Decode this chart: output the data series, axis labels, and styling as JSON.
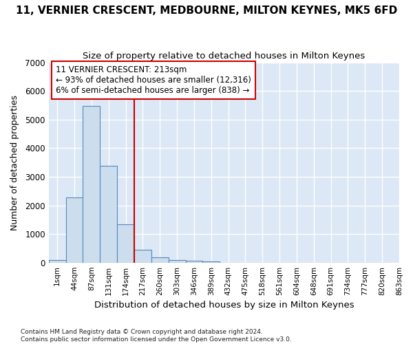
{
  "title": "11, VERNIER CRESCENT, MEDBOURNE, MILTON KEYNES, MK5 6FD",
  "subtitle": "Size of property relative to detached houses in Milton Keynes",
  "xlabel": "Distribution of detached houses by size in Milton Keynes",
  "ylabel": "Number of detached properties",
  "footer_line1": "Contains HM Land Registry data © Crown copyright and database right 2024.",
  "footer_line2": "Contains public sector information licensed under the Open Government Licence v3.0.",
  "bin_labels": [
    "1sqm",
    "44sqm",
    "87sqm",
    "131sqm",
    "174sqm",
    "217sqm",
    "260sqm",
    "303sqm",
    "346sqm",
    "389sqm",
    "432sqm",
    "475sqm",
    "518sqm",
    "561sqm",
    "604sqm",
    "648sqm",
    "691sqm",
    "734sqm",
    "777sqm",
    "820sqm",
    "863sqm"
  ],
  "bar_values": [
    80,
    2280,
    5480,
    3390,
    1350,
    450,
    175,
    80,
    65,
    50,
    0,
    0,
    0,
    0,
    0,
    0,
    0,
    0,
    0,
    0
  ],
  "bar_color": "#ccdded",
  "bar_edgecolor": "#5588bb",
  "vline_bin": 5,
  "vline_color": "#cc0000",
  "annotation_line1": "11 VERNIER CRESCENT: 213sqm",
  "annotation_line2": "← 93% of detached houses are smaller (12,316)",
  "annotation_line3": "6% of semi-detached houses are larger (838) →",
  "annotation_fontsize": 8.5,
  "ylim": [
    0,
    7000
  ],
  "yticks": [
    0,
    1000,
    2000,
    3000,
    4000,
    5000,
    6000,
    7000
  ],
  "bg_color": "#ffffff",
  "plot_bg_color": "#dce8f5",
  "grid_color": "#ffffff",
  "title_fontsize": 11,
  "subtitle_fontsize": 9.5,
  "xlabel_fontsize": 9.5,
  "ylabel_fontsize": 9
}
